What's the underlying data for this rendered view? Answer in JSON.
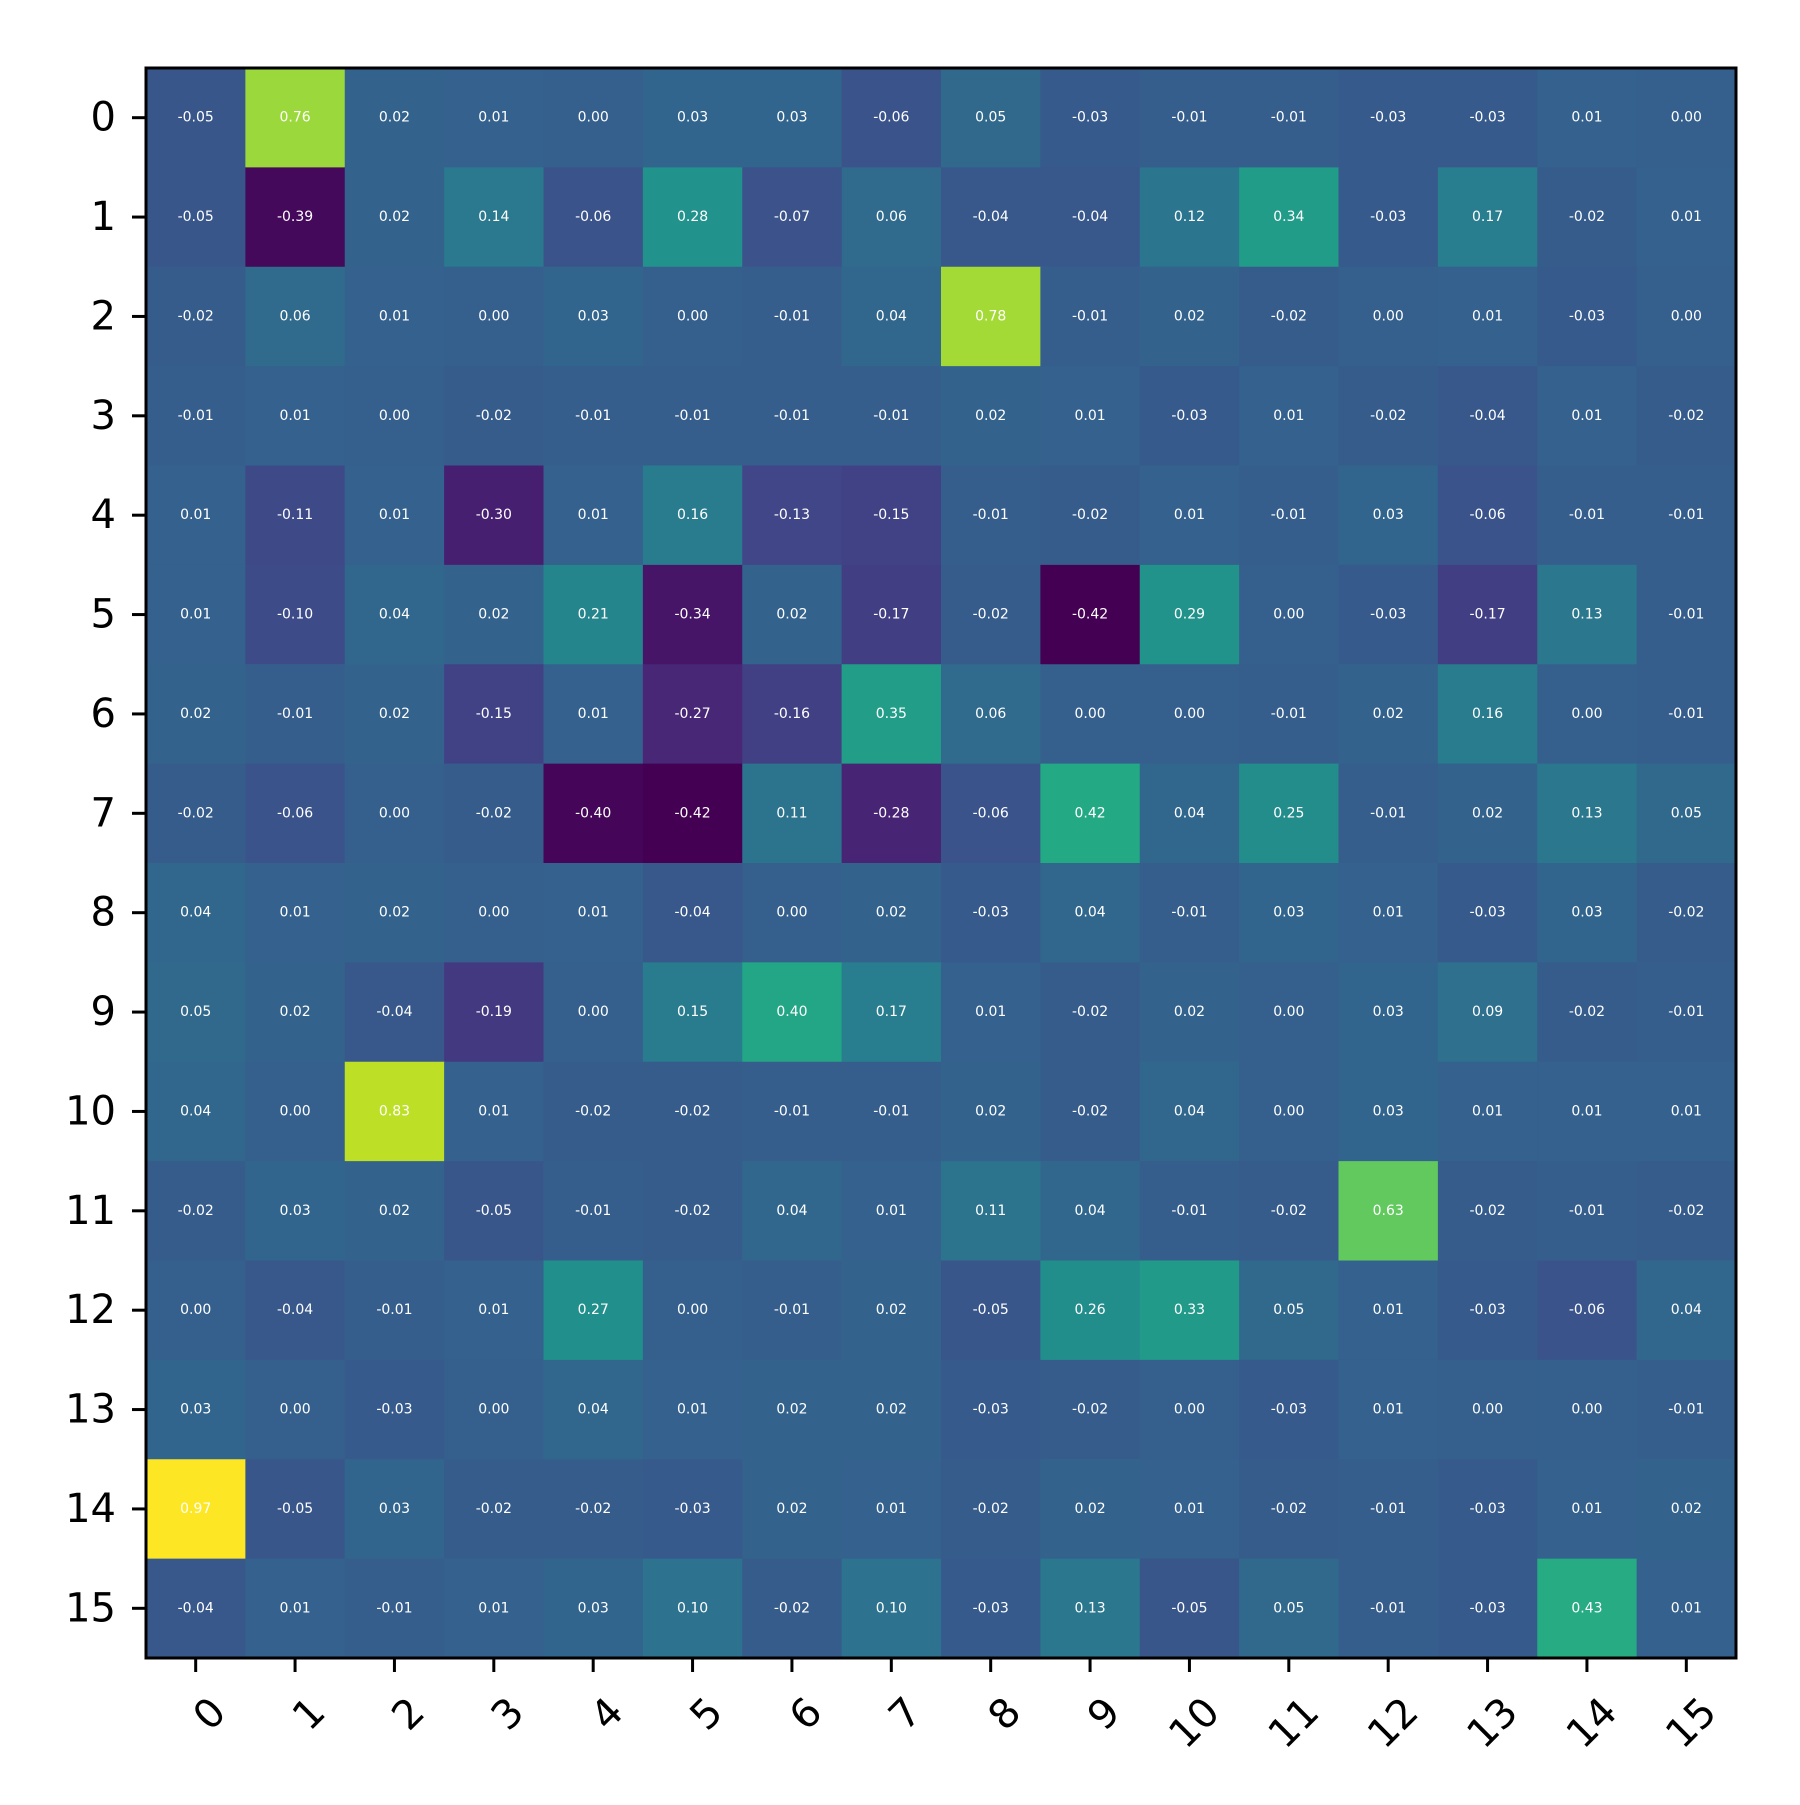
{
  "chart_data": {
    "type": "heatmap",
    "title": "",
    "xlabel": "",
    "ylabel": "",
    "x_labels": [
      "0",
      "1",
      "2",
      "3",
      "4",
      "5",
      "6",
      "7",
      "8",
      "9",
      "10",
      "11",
      "12",
      "13",
      "14",
      "15"
    ],
    "y_labels": [
      "0",
      "1",
      "2",
      "3",
      "4",
      "5",
      "6",
      "7",
      "8",
      "9",
      "10",
      "11",
      "12",
      "13",
      "14",
      "15"
    ],
    "colormap": "viridis",
    "vmin": -0.42,
    "vmax": 0.97,
    "cell_text_color": "#ffffff",
    "values": [
      [
        -0.05,
        0.76,
        0.02,
        0.01,
        -0.0,
        0.03,
        0.03,
        -0.06,
        0.05,
        -0.03,
        -0.01,
        -0.01,
        -0.03,
        -0.03,
        0.01,
        0.0
      ],
      [
        -0.05,
        -0.39,
        0.02,
        0.14,
        -0.06,
        0.28,
        -0.07,
        0.06,
        -0.04,
        -0.04,
        0.12,
        0.34,
        -0.03,
        0.17,
        -0.02,
        0.01
      ],
      [
        -0.02,
        0.06,
        0.01,
        0.0,
        0.03,
        -0.0,
        -0.01,
        0.04,
        0.78,
        -0.01,
        0.02,
        -0.02,
        -0.0,
        0.01,
        -0.03,
        -0.0
      ],
      [
        -0.01,
        0.01,
        -0.0,
        -0.02,
        -0.01,
        -0.01,
        -0.01,
        -0.01,
        0.02,
        0.01,
        -0.03,
        0.01,
        -0.02,
        -0.04,
        0.01,
        -0.02
      ],
      [
        0.01,
        -0.11,
        0.01,
        -0.3,
        0.01,
        0.16,
        -0.13,
        -0.15,
        -0.01,
        -0.02,
        0.01,
        -0.01,
        0.03,
        -0.06,
        -0.01,
        -0.01
      ],
      [
        0.01,
        -0.1,
        0.04,
        0.02,
        0.21,
        -0.34,
        0.02,
        -0.17,
        -0.02,
        -0.42,
        0.29,
        -0.0,
        -0.03,
        -0.17,
        0.13,
        -0.01
      ],
      [
        0.02,
        -0.01,
        0.02,
        -0.15,
        0.01,
        -0.27,
        -0.16,
        0.35,
        0.06,
        0.0,
        0.0,
        -0.01,
        0.02,
        0.16,
        0.0,
        -0.01
      ],
      [
        -0.02,
        -0.06,
        -0.0,
        -0.02,
        -0.4,
        -0.42,
        0.11,
        -0.28,
        -0.06,
        0.42,
        0.04,
        0.25,
        -0.01,
        0.02,
        0.13,
        0.05
      ],
      [
        0.04,
        0.01,
        0.02,
        0.0,
        0.01,
        -0.04,
        0.0,
        0.02,
        -0.03,
        0.04,
        -0.01,
        0.03,
        0.01,
        -0.03,
        0.03,
        -0.02
      ],
      [
        0.05,
        0.02,
        -0.04,
        -0.19,
        -0.0,
        0.15,
        0.4,
        0.17,
        0.01,
        -0.02,
        0.02,
        0.0,
        0.03,
        0.09,
        -0.02,
        -0.01
      ],
      [
        0.04,
        0.0,
        0.83,
        0.01,
        -0.02,
        -0.02,
        -0.01,
        -0.01,
        0.02,
        -0.02,
        0.04,
        -0.0,
        0.03,
        0.01,
        0.01,
        0.01
      ],
      [
        -0.02,
        0.03,
        0.02,
        -0.05,
        -0.01,
        -0.02,
        0.04,
        0.01,
        0.11,
        0.04,
        -0.01,
        -0.02,
        0.63,
        -0.02,
        -0.01,
        -0.02
      ],
      [
        -0.0,
        -0.04,
        -0.01,
        0.01,
        0.27,
        0.0,
        -0.01,
        0.02,
        -0.05,
        0.26,
        0.33,
        0.05,
        0.01,
        -0.03,
        -0.06,
        0.04
      ],
      [
        0.03,
        -0.0,
        -0.03,
        0.0,
        0.04,
        0.01,
        0.02,
        0.02,
        -0.03,
        -0.02,
        -0.0,
        -0.03,
        0.01,
        0.0,
        0.0,
        -0.01
      ],
      [
        0.97,
        -0.05,
        0.03,
        -0.02,
        -0.02,
        -0.03,
        0.02,
        0.01,
        -0.02,
        0.02,
        0.01,
        -0.02,
        -0.01,
        -0.03,
        0.01,
        0.02
      ],
      [
        -0.04,
        0.01,
        -0.01,
        0.01,
        0.03,
        0.1,
        -0.02,
        0.1,
        -0.03,
        0.13,
        -0.05,
        0.05,
        -0.01,
        -0.03,
        0.43,
        0.01
      ]
    ],
    "grid": false,
    "legend": "none"
  }
}
